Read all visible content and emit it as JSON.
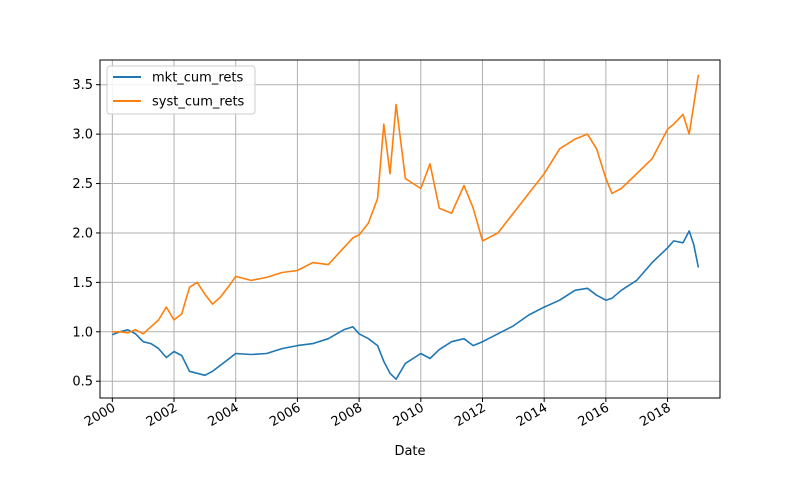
{
  "chart_data": {
    "type": "line",
    "title": "",
    "xlabel": "Date",
    "ylabel": "",
    "xlim": [
      1999.6,
      2019.7
    ],
    "ylim": [
      0.33,
      3.75
    ],
    "grid": true,
    "legend_position": "top-left",
    "x_ticks": [
      2000,
      2002,
      2004,
      2006,
      2008,
      2010,
      2012,
      2014,
      2016,
      2018
    ],
    "x_tick_labels": [
      "2000",
      "2002",
      "2004",
      "2006",
      "2008",
      "2010",
      "2012",
      "2014",
      "2016",
      "2018"
    ],
    "y_ticks": [
      0.5,
      1.0,
      1.5,
      2.0,
      2.5,
      3.0,
      3.5
    ],
    "y_tick_labels": [
      "0.5",
      "1.0",
      "1.5",
      "2.0",
      "2.5",
      "3.0",
      "3.5"
    ],
    "series": [
      {
        "name": "mkt_cum_rets",
        "color": "#1f77b4",
        "x": [
          2000.0,
          2000.25,
          2000.5,
          2000.75,
          2001.0,
          2001.25,
          2001.5,
          2001.75,
          2002.0,
          2002.25,
          2002.5,
          2002.75,
          2003.0,
          2003.25,
          2003.5,
          2003.75,
          2004.0,
          2004.5,
          2005.0,
          2005.5,
          2006.0,
          2006.5,
          2007.0,
          2007.5,
          2007.8,
          2008.0,
          2008.3,
          2008.6,
          2008.8,
          2009.0,
          2009.2,
          2009.5,
          2010.0,
          2010.3,
          2010.6,
          2011.0,
          2011.4,
          2011.7,
          2012.0,
          2012.5,
          2013.0,
          2013.5,
          2014.0,
          2014.5,
          2015.0,
          2015.4,
          2015.7,
          2016.0,
          2016.2,
          2016.5,
          2017.0,
          2017.5,
          2018.0,
          2018.2,
          2018.5,
          2018.7,
          2018.85,
          2019.0
        ],
        "values": [
          0.97,
          1.0,
          1.02,
          0.98,
          0.9,
          0.88,
          0.83,
          0.74,
          0.8,
          0.76,
          0.6,
          0.58,
          0.56,
          0.6,
          0.66,
          0.72,
          0.78,
          0.77,
          0.78,
          0.83,
          0.86,
          0.88,
          0.93,
          1.02,
          1.05,
          0.98,
          0.93,
          0.86,
          0.7,
          0.58,
          0.52,
          0.68,
          0.78,
          0.73,
          0.82,
          0.9,
          0.93,
          0.86,
          0.9,
          0.98,
          1.06,
          1.17,
          1.25,
          1.32,
          1.42,
          1.44,
          1.37,
          1.32,
          1.34,
          1.42,
          1.52,
          1.7,
          1.85,
          1.92,
          1.9,
          2.02,
          1.88,
          1.65
        ]
      },
      {
        "name": "syst_cum_rets",
        "color": "#ff7f0e",
        "x": [
          2000.0,
          2000.25,
          2000.5,
          2000.75,
          2001.0,
          2001.25,
          2001.5,
          2001.75,
          2002.0,
          2002.25,
          2002.5,
          2002.75,
          2003.0,
          2003.25,
          2003.5,
          2003.75,
          2004.0,
          2004.5,
          2005.0,
          2005.5,
          2006.0,
          2006.5,
          2007.0,
          2007.5,
          2007.8,
          2008.0,
          2008.3,
          2008.6,
          2008.8,
          2009.0,
          2009.2,
          2009.5,
          2010.0,
          2010.3,
          2010.6,
          2011.0,
          2011.4,
          2011.7,
          2012.0,
          2012.5,
          2013.0,
          2013.5,
          2014.0,
          2014.5,
          2015.0,
          2015.4,
          2015.7,
          2016.0,
          2016.2,
          2016.5,
          2017.0,
          2017.5,
          2018.0,
          2018.2,
          2018.5,
          2018.7,
          2018.85,
          2019.0
        ],
        "values": [
          1.0,
          1.0,
          0.99,
          1.02,
          0.98,
          1.05,
          1.12,
          1.25,
          1.12,
          1.18,
          1.45,
          1.5,
          1.38,
          1.28,
          1.35,
          1.45,
          1.56,
          1.52,
          1.55,
          1.6,
          1.62,
          1.7,
          1.68,
          1.85,
          1.95,
          1.98,
          2.1,
          2.35,
          3.1,
          2.6,
          3.3,
          2.55,
          2.45,
          2.7,
          2.25,
          2.2,
          2.48,
          2.25,
          1.92,
          2.0,
          2.2,
          2.4,
          2.6,
          2.85,
          2.95,
          3.0,
          2.85,
          2.55,
          2.4,
          2.45,
          2.6,
          2.75,
          3.05,
          3.1,
          3.2,
          3.0,
          3.3,
          3.6
        ]
      }
    ]
  }
}
